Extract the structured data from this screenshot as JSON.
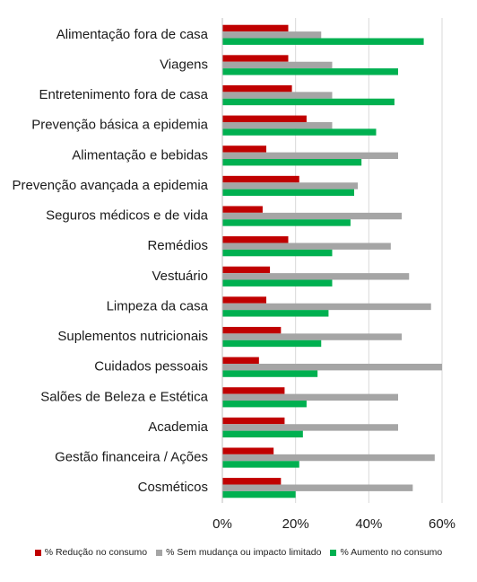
{
  "chart_data": {
    "type": "bar",
    "orientation": "horizontal",
    "categories": [
      "Alimentação fora de casa",
      "Viagens",
      "Entretenimento fora de casa",
      "Prevenção básica a epidemia",
      "Alimentação e bebidas",
      "Prevenção avançada a epidemia",
      "Seguros médicos e de vida",
      "Remédios",
      "Vestuário",
      "Limpeza da casa",
      "Suplementos nutricionais",
      "Cuidados pessoais",
      "Salões de Beleza e Estética",
      "Academia",
      "Gestão financeira / Ações",
      "Cosméticos"
    ],
    "series": [
      {
        "name": "% Redução no consumo",
        "color": "#c00000",
        "values": [
          18,
          18,
          19,
          23,
          12,
          21,
          11,
          18,
          13,
          12,
          16,
          10,
          17,
          17,
          14,
          16
        ]
      },
      {
        "name": "% Sem mudança ou impacto limitado",
        "color": "#a5a5a5",
        "values": [
          27,
          30,
          30,
          30,
          48,
          37,
          49,
          46,
          51,
          57,
          49,
          60,
          48,
          48,
          58,
          52
        ]
      },
      {
        "name": "% Aumento no consumo",
        "color": "#00b050",
        "values": [
          55,
          48,
          47,
          42,
          38,
          36,
          35,
          30,
          30,
          29,
          27,
          26,
          23,
          22,
          21,
          20
        ]
      }
    ],
    "xlim": [
      0,
      60
    ],
    "xticks": [
      "0%",
      "20%",
      "40%",
      "60%"
    ],
    "grid": true,
    "legend_position": "bottom"
  }
}
